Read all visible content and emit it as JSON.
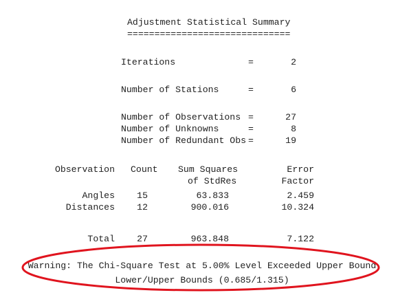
{
  "title": "Adjustment Statistical Summary",
  "title_rule": "==============================",
  "summary": [
    {
      "label": "Iterations",
      "sign": "=",
      "value": "2"
    },
    {
      "label": "Number of Stations",
      "sign": "=",
      "value": "6"
    },
    {
      "label": "Number of Observations",
      "sign": "=",
      "value": "27"
    },
    {
      "label": "Number of Unknowns",
      "sign": "=",
      "value": "8"
    },
    {
      "label": "Number of Redundant Obs",
      "sign": "=",
      "value": "19"
    }
  ],
  "table": {
    "header": [
      [
        "Observation",
        "Count",
        "Sum Squares",
        "Error"
      ],
      [
        "",
        "",
        "of StdRes",
        "Factor"
      ]
    ],
    "rows": [
      [
        "Angles",
        "15",
        "63.833",
        "2.459"
      ],
      [
        "Distances",
        "12",
        "900.016",
        "10.324"
      ]
    ],
    "total": [
      "Total",
      "27",
      "963.848",
      "7.122"
    ]
  },
  "warning": [
    "Warning: The Chi-Square Test at 5.00% Level Exceeded Upper Bound",
    "Lower/Upper Bounds (0.685/1.315)"
  ]
}
